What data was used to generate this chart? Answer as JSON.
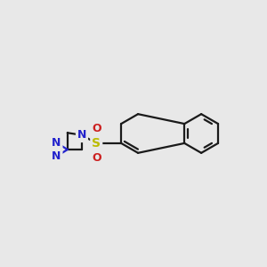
{
  "bg_color": "#e8e8e8",
  "bond_color": "#1a1a1a",
  "bond_width": 1.6,
  "N_color": "#2222cc",
  "O_color": "#cc2020",
  "S_color": "#bbbb00",
  "fig_width": 3.0,
  "fig_height": 3.0,
  "xlim": [
    -0.8,
    5.0
  ],
  "ylim": [
    0.3,
    3.7
  ]
}
